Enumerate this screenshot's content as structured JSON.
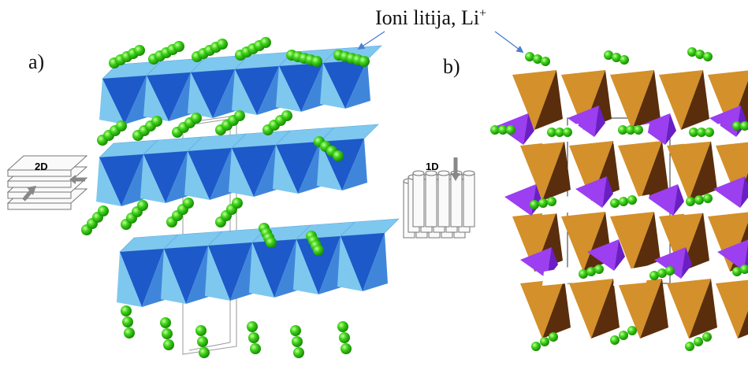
{
  "labels": {
    "panel_a": "a)",
    "panel_b": "b)",
    "ions_text": "Ioni litija, Li",
    "ions_sup": "+",
    "inset_a": "2D",
    "inset_b": "1D"
  },
  "colors": {
    "li_ion": "#3ed41a",
    "octa_light": "#7ec8ef",
    "octa_dark": "#1d59c9",
    "octa_mid": "#3f86db",
    "tetra_light": "#d4902a",
    "tetra_dark": "#5a2e0c",
    "purple": "#9b3ff0",
    "purple_dark": "#6a1fc4",
    "arrow": "#4a7fd0"
  }
}
